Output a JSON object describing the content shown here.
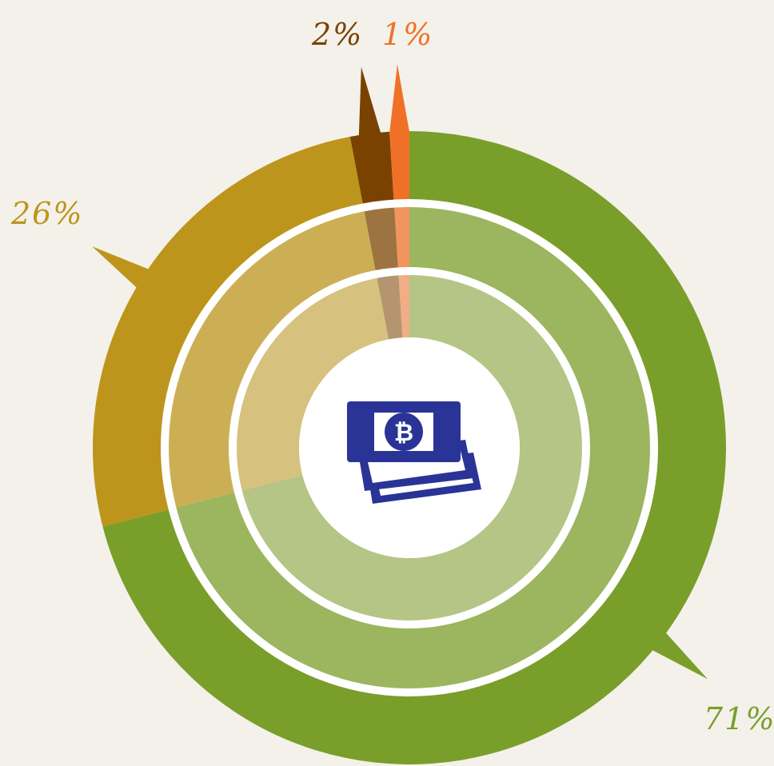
{
  "chart_data": {
    "type": "pie",
    "style": "concentric-donut",
    "rings": 3,
    "slices": [
      {
        "label": "71%",
        "value": 71,
        "color": "#7a9e2a"
      },
      {
        "label": "26%",
        "value": 26,
        "color": "#bd951c"
      },
      {
        "label": "2%",
        "value": 2,
        "color": "#7a4200"
      },
      {
        "label": "1%",
        "value": 1,
        "color": "#f07028"
      }
    ],
    "center_icon": "bitcoin-banknotes-icon",
    "center_icon_color": "#2a3496"
  }
}
